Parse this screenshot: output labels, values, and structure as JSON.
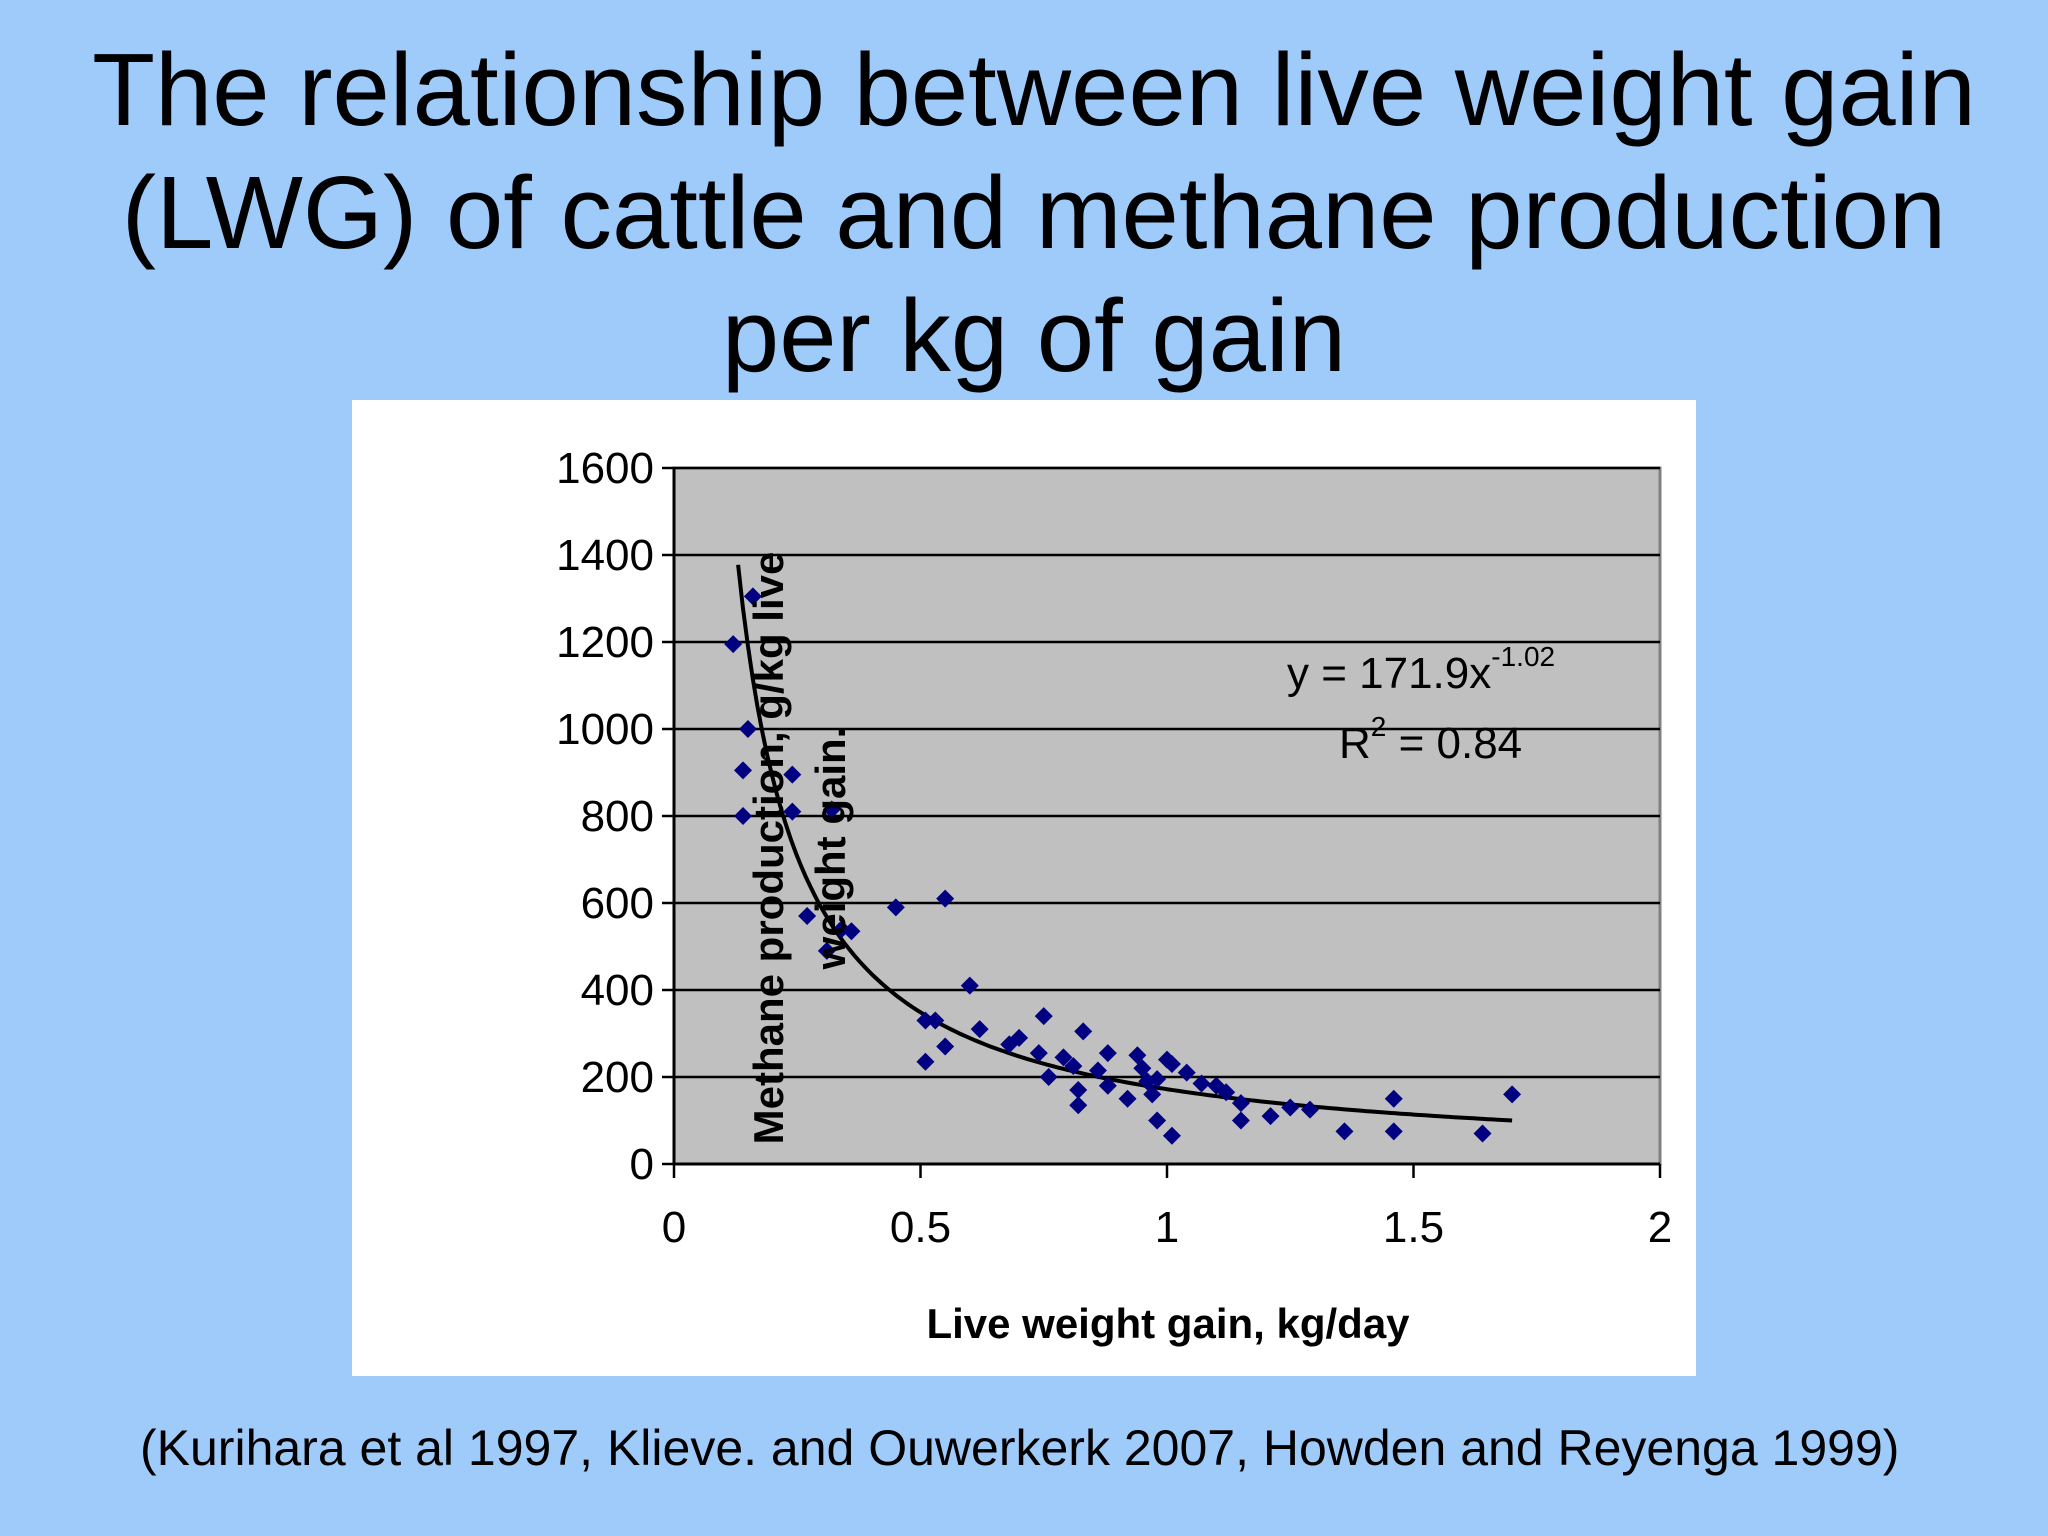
{
  "slide": {
    "title_lines": [
      "The relationship between live weight gain",
      "(LWG) of cattle and methane production",
      "per kg of gain"
    ],
    "citation": "(Kurihara et al 1997, Klieve. and Ouwerkerk 2007, Howden  and Reyenga  1999)"
  },
  "colors": {
    "background": "#9fcbfb",
    "plot_area": "#c0c0c0",
    "marker": "#000080",
    "trendline": "#000000"
  },
  "chart_data": {
    "type": "scatter",
    "xlabel": "Live weight gain, kg/day",
    "ylabel_lines": [
      "Methane production, g/kg live",
      "weight gain."
    ],
    "xlim": [
      0,
      2
    ],
    "ylim": [
      0,
      1600
    ],
    "x_ticks": [
      "0",
      "0.5",
      "1",
      "1.5",
      "2"
    ],
    "y_ticks": [
      "0",
      "200",
      "400",
      "600",
      "800",
      "1000",
      "1200",
      "1400",
      "1600"
    ],
    "horizontal_grid": true,
    "vertical_grid": false,
    "marker": "diamond",
    "equation": {
      "line1_prefix": "y = 171.9x",
      "line1_exponent": "-1.02",
      "line2_prefix": "R",
      "line2_exponent": "2",
      "line2_suffix": " = 0.84"
    },
    "trendline": {
      "model": "power",
      "coefficient": 171.9,
      "exponent": -1.02,
      "x_range": [
        0.13,
        1.7
      ]
    },
    "points": [
      {
        "x": 0.12,
        "y": 1195
      },
      {
        "x": 0.16,
        "y": 1305
      },
      {
        "x": 0.15,
        "y": 1000
      },
      {
        "x": 0.14,
        "y": 905
      },
      {
        "x": 0.14,
        "y": 800
      },
      {
        "x": 0.24,
        "y": 895
      },
      {
        "x": 0.24,
        "y": 810
      },
      {
        "x": 0.32,
        "y": 815
      },
      {
        "x": 0.27,
        "y": 570
      },
      {
        "x": 0.31,
        "y": 490
      },
      {
        "x": 0.34,
        "y": 540
      },
      {
        "x": 0.36,
        "y": 535
      },
      {
        "x": 0.45,
        "y": 590
      },
      {
        "x": 0.55,
        "y": 610
      },
      {
        "x": 0.51,
        "y": 330
      },
      {
        "x": 0.53,
        "y": 330
      },
      {
        "x": 0.51,
        "y": 235
      },
      {
        "x": 0.55,
        "y": 270
      },
      {
        "x": 0.6,
        "y": 410
      },
      {
        "x": 0.62,
        "y": 310
      },
      {
        "x": 0.68,
        "y": 275
      },
      {
        "x": 0.7,
        "y": 290
      },
      {
        "x": 0.74,
        "y": 255
      },
      {
        "x": 0.75,
        "y": 340
      },
      {
        "x": 0.76,
        "y": 200
      },
      {
        "x": 0.79,
        "y": 245
      },
      {
        "x": 0.81,
        "y": 225
      },
      {
        "x": 0.82,
        "y": 170
      },
      {
        "x": 0.82,
        "y": 135
      },
      {
        "x": 0.83,
        "y": 305
      },
      {
        "x": 0.86,
        "y": 215
      },
      {
        "x": 0.88,
        "y": 255
      },
      {
        "x": 0.88,
        "y": 180
      },
      {
        "x": 0.92,
        "y": 150
      },
      {
        "x": 0.94,
        "y": 250
      },
      {
        "x": 0.95,
        "y": 220
      },
      {
        "x": 0.96,
        "y": 190
      },
      {
        "x": 0.97,
        "y": 160
      },
      {
        "x": 0.98,
        "y": 195
      },
      {
        "x": 0.98,
        "y": 100
      },
      {
        "x": 1.0,
        "y": 240
      },
      {
        "x": 1.01,
        "y": 230
      },
      {
        "x": 1.01,
        "y": 65
      },
      {
        "x": 1.04,
        "y": 210
      },
      {
        "x": 1.07,
        "y": 185
      },
      {
        "x": 1.1,
        "y": 180
      },
      {
        "x": 1.12,
        "y": 165
      },
      {
        "x": 1.15,
        "y": 140
      },
      {
        "x": 1.15,
        "y": 100
      },
      {
        "x": 1.21,
        "y": 110
      },
      {
        "x": 1.25,
        "y": 130
      },
      {
        "x": 1.29,
        "y": 125
      },
      {
        "x": 1.36,
        "y": 75
      },
      {
        "x": 1.46,
        "y": 150
      },
      {
        "x": 1.46,
        "y": 75
      },
      {
        "x": 1.64,
        "y": 70
      },
      {
        "x": 1.7,
        "y": 160
      }
    ]
  }
}
